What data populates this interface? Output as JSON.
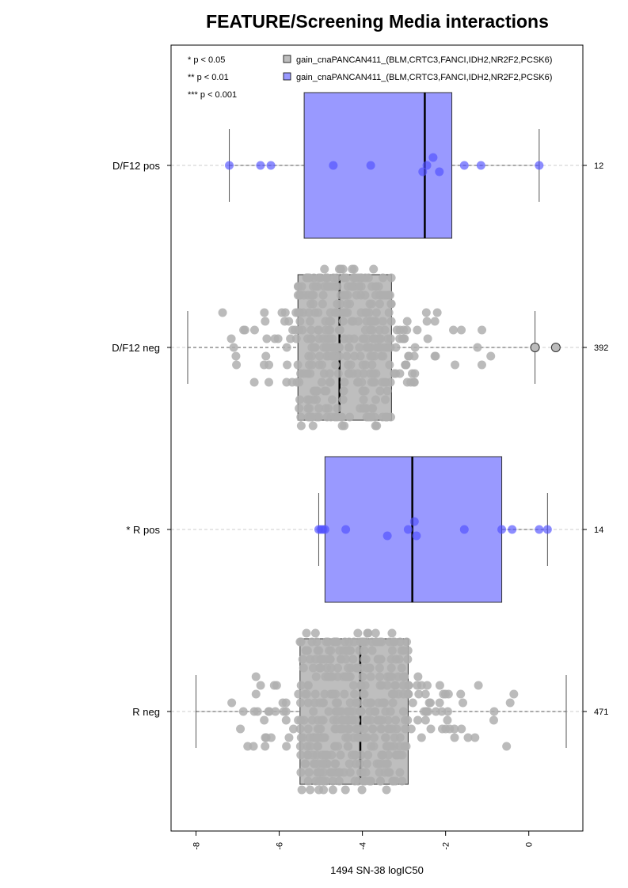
{
  "chart_data": {
    "type": "box",
    "title": "FEATURE/Screening Media interactions",
    "xlabel": "1494 SN-38 logIC50",
    "ylabel": "",
    "xlim": [
      -8.6,
      1.3
    ],
    "xticks": [
      -8,
      -6,
      -4,
      -2,
      0
    ],
    "grid": false,
    "legend_position": "top-right",
    "significance_legend": [
      "* p < 0.05",
      "** p < 0.01",
      "*** p < 0.001"
    ],
    "legend": [
      {
        "label": "gain_cnaPANCAN411_(BLM,CRTC3,FANCI,IDH2,NR2F2,PCSK6)",
        "color": "#bebebe"
      },
      {
        "label": "gain_cnaPANCAN411_(BLM,CRTC3,FANCI,IDH2,NR2F2,PCSK6)",
        "color": "#9999ff"
      }
    ],
    "categories": [
      "D/F12 pos",
      "D/F12 neg",
      "* R pos",
      "R neg"
    ],
    "counts": [
      "12",
      "392",
      "14",
      "471"
    ],
    "boxes": [
      {
        "category": "D/F12 pos",
        "group": "pos",
        "whisker_low": -7.2,
        "q1": -5.4,
        "median": -2.5,
        "q3": -1.85,
        "whisker_high": 0.25,
        "points": [
          -7.2,
          -6.45,
          -6.2,
          -4.7,
          -3.8,
          -2.55,
          -2.45,
          -2.3,
          -2.15,
          -1.55,
          -1.15,
          0.25
        ]
      },
      {
        "category": "D/F12 neg",
        "group": "neg",
        "whisker_low": -8.2,
        "q1": -5.55,
        "median": -4.55,
        "q3": -3.3,
        "whisker_high": 0.15,
        "n": 392,
        "outliers": [
          0.15,
          0.65
        ]
      },
      {
        "category": "* R pos",
        "group": "pos",
        "whisker_low": -5.05,
        "q1": -4.9,
        "median": -2.8,
        "q3": -0.65,
        "whisker_high": 0.45,
        "points": [
          -5.05,
          -5.0,
          -4.95,
          -4.9,
          -4.4,
          -3.4,
          -2.9,
          -2.75,
          -2.7,
          -1.55,
          -0.65,
          -0.4,
          0.25,
          0.45
        ]
      },
      {
        "category": "R neg",
        "group": "neg",
        "whisker_low": -8.0,
        "q1": -5.5,
        "median": -4.05,
        "q3": -2.9,
        "whisker_high": 0.9,
        "n": 471,
        "outliers": []
      }
    ]
  }
}
